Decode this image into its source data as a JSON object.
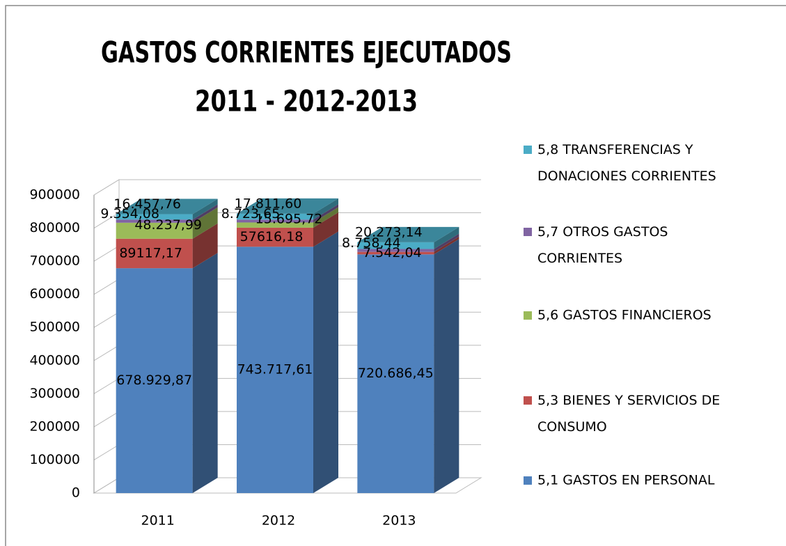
{
  "chart_data": {
    "type": "bar3d_stacked",
    "title": "GASTOS CORRIENTES EJECUTADOS",
    "subtitle": "2011 - 2012-2013",
    "categories": [
      "2011",
      "2012",
      "2013"
    ],
    "series": [
      {
        "name": "5,1 GASTOS EN PERSONAL",
        "color": "#4f81bd",
        "values": [
          678929.87,
          743717.61,
          720686.45
        ],
        "value_labels": [
          "678.929,87",
          "743.717,61",
          "720.686,45"
        ]
      },
      {
        "name": "5,3 BIENES Y SERVICIOS DE CONSUMO",
        "color": "#c0504d",
        "values": [
          89117.17,
          57616.18,
          7542.04
        ],
        "value_labels": [
          "89117,17",
          "57616,18",
          "7.542,04"
        ]
      },
      {
        "name": "5,6 GASTOS FINANCIEROS",
        "color": "#9bbb59",
        "values": [
          48237.99,
          15695.72,
          null
        ],
        "value_labels": [
          "48.237,99",
          "15.695,72",
          null
        ]
      },
      {
        "name": "5,7 OTROS GASTOS CORRIENTES",
        "color": "#8064a2",
        "values": [
          9354.08,
          8723.65,
          8758.44
        ],
        "value_labels": [
          "9.354,08",
          "8.723,65",
          "8.758,44"
        ]
      },
      {
        "name": "5,8 TRANSFERENCIAS Y DONACIONES CORRIENTES",
        "color": "#4bacc6",
        "values": [
          16457.76,
          17811.6,
          20273.14
        ],
        "value_labels": [
          "16.457,76",
          "17.811,60",
          "20.273,14"
        ]
      }
    ],
    "ylim": [
      0,
      900000
    ],
    "yticks": [
      0,
      100000,
      200000,
      300000,
      400000,
      500000,
      600000,
      700000,
      800000,
      900000
    ],
    "grid": true,
    "legend": "right"
  }
}
